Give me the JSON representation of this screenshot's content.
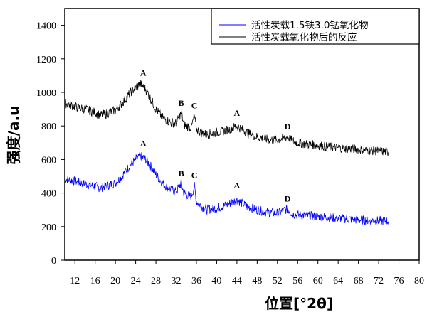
{
  "chart_data": {
    "type": "line",
    "title": "",
    "xlabel": "位置[°2θ]",
    "ylabel": "强度/a.u",
    "xlim": [
      10,
      80
    ],
    "ylim": [
      0,
      1500
    ],
    "xticks": [
      12,
      16,
      20,
      24,
      28,
      32,
      36,
      40,
      44,
      48,
      52,
      56,
      60,
      64,
      68,
      72,
      76,
      80
    ],
    "yticks": [
      0,
      200,
      400,
      600,
      800,
      1000,
      1200,
      1400
    ],
    "grid": false,
    "legend_position": "top-right",
    "series": [
      {
        "name": "活性炭载1.5铁3.0锰氧化物",
        "color": "#0000ff",
        "points": [
          [
            10,
            485
          ],
          [
            12,
            470
          ],
          [
            14,
            455
          ],
          [
            16,
            440
          ],
          [
            17,
            430
          ],
          [
            18,
            440
          ],
          [
            20,
            460
          ],
          [
            21,
            490
          ],
          [
            22,
            530
          ],
          [
            23,
            570
          ],
          [
            24,
            600
          ],
          [
            25,
            620
          ],
          [
            26,
            600
          ],
          [
            27,
            560
          ],
          [
            28,
            510
          ],
          [
            29,
            470
          ],
          [
            30,
            440
          ],
          [
            31,
            420
          ],
          [
            32,
            410
          ],
          [
            33,
            460
          ],
          [
            33.5,
            400
          ],
          [
            34,
            390
          ],
          [
            35,
            380
          ],
          [
            35.6,
            440
          ],
          [
            36,
            350
          ],
          [
            37,
            320
          ],
          [
            38,
            300
          ],
          [
            40,
            310
          ],
          [
            42,
            330
          ],
          [
            44,
            360
          ],
          [
            45,
            340
          ],
          [
            46,
            320
          ],
          [
            48,
            300
          ],
          [
            50,
            285
          ],
          [
            52,
            280
          ],
          [
            54,
            305
          ],
          [
            55,
            275
          ],
          [
            56,
            270
          ],
          [
            58,
            265
          ],
          [
            60,
            260
          ],
          [
            62,
            255
          ],
          [
            64,
            250
          ],
          [
            66,
            245
          ],
          [
            68,
            240
          ],
          [
            70,
            238
          ],
          [
            72,
            235
          ],
          [
            74,
            232
          ]
        ]
      },
      {
        "name": "活性炭载氧化物后的反应",
        "color": "#000000",
        "points": [
          [
            10,
            935
          ],
          [
            12,
            915
          ],
          [
            14,
            900
          ],
          [
            16,
            880
          ],
          [
            17,
            865
          ],
          [
            18,
            870
          ],
          [
            20,
            895
          ],
          [
            21,
            925
          ],
          [
            22,
            960
          ],
          [
            23,
            1000
          ],
          [
            24,
            1030
          ],
          [
            25,
            1050
          ],
          [
            26,
            1020
          ],
          [
            27,
            960
          ],
          [
            28,
            900
          ],
          [
            29,
            860
          ],
          [
            30,
            835
          ],
          [
            31,
            820
          ],
          [
            32,
            815
          ],
          [
            33,
            880
          ],
          [
            33.5,
            810
          ],
          [
            34,
            800
          ],
          [
            35,
            790
          ],
          [
            35.6,
            860
          ],
          [
            36,
            780
          ],
          [
            37,
            760
          ],
          [
            38,
            750
          ],
          [
            40,
            760
          ],
          [
            42,
            775
          ],
          [
            44,
            800
          ],
          [
            45,
            780
          ],
          [
            46,
            760
          ],
          [
            48,
            735
          ],
          [
            50,
            720
          ],
          [
            52,
            715
          ],
          [
            54,
            735
          ],
          [
            55,
            710
          ],
          [
            56,
            700
          ],
          [
            58,
            690
          ],
          [
            60,
            685
          ],
          [
            62,
            675
          ],
          [
            64,
            670
          ],
          [
            66,
            665
          ],
          [
            68,
            660
          ],
          [
            70,
            655
          ],
          [
            72,
            650
          ],
          [
            74,
            645
          ]
        ]
      }
    ],
    "annotations": [
      {
        "text": "A",
        "x": 25.5,
        "y": 1100
      },
      {
        "text": "B",
        "x": 33,
        "y": 920
      },
      {
        "text": "C",
        "x": 35.6,
        "y": 905
      },
      {
        "text": "A",
        "x": 44,
        "y": 860
      },
      {
        "text": "D",
        "x": 54,
        "y": 780
      },
      {
        "text": "A",
        "x": 25.5,
        "y": 680
      },
      {
        "text": "B",
        "x": 33,
        "y": 500
      },
      {
        "text": "C",
        "x": 35.6,
        "y": 490
      },
      {
        "text": "A",
        "x": 44,
        "y": 430
      },
      {
        "text": "D",
        "x": 54,
        "y": 350
      }
    ]
  }
}
